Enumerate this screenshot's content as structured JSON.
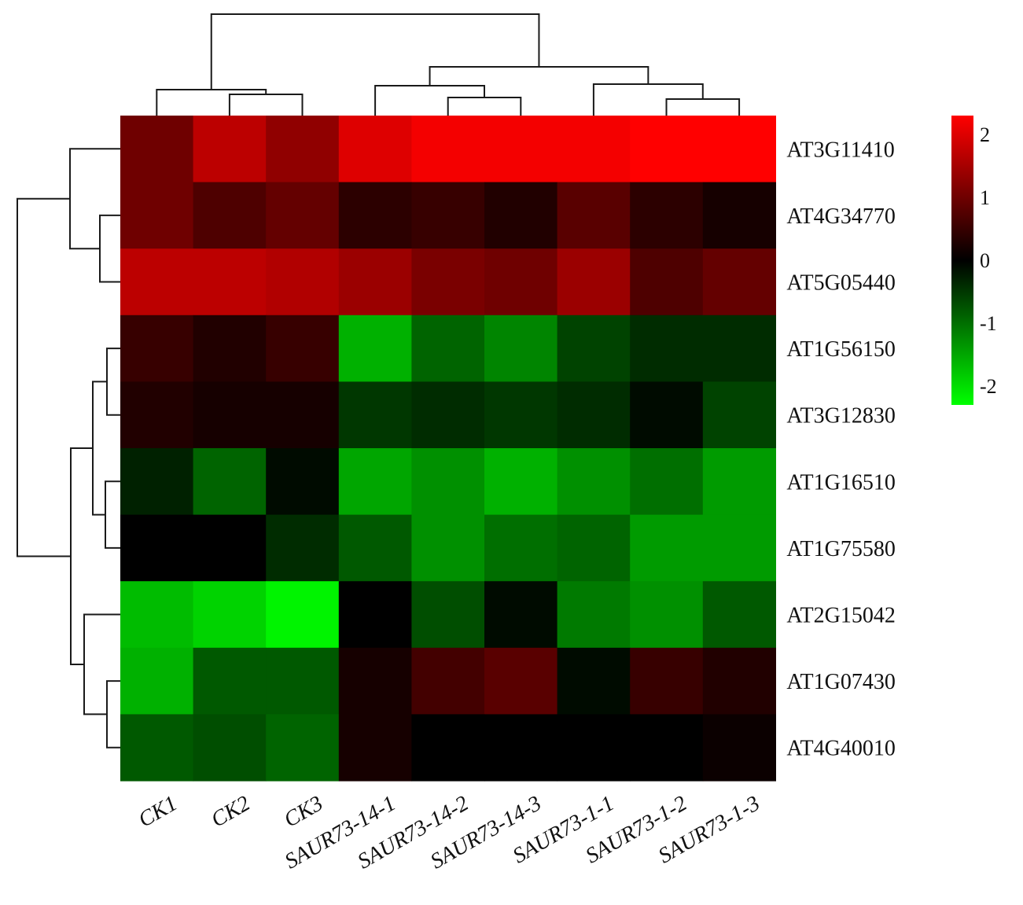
{
  "chart_data": {
    "type": "heatmap",
    "columns": [
      "CK1",
      "CK2",
      "CK3",
      "SAUR73-14-1",
      "SAUR73-14-2",
      "SAUR73-14-3",
      "SAUR73-1-1",
      "SAUR73-1-2",
      "SAUR73-1-3"
    ],
    "rows": [
      "AT3G11410",
      "AT4G34770",
      "AT5G05440",
      "AT1G56150",
      "AT3G12830",
      "AT1G16510",
      "AT1G75580",
      "AT2G15042",
      "AT1G07430",
      "AT4G40010"
    ],
    "values": [
      [
        1.0,
        1.7,
        1.3,
        2.0,
        2.2,
        2.2,
        2.2,
        2.3,
        2.3
      ],
      [
        1.0,
        0.7,
        0.9,
        0.4,
        0.5,
        0.3,
        0.8,
        0.4,
        0.2
      ],
      [
        1.7,
        1.7,
        1.6,
        1.4,
        1.1,
        1.0,
        1.4,
        0.7,
        0.9
      ],
      [
        0.5,
        0.3,
        0.5,
        -1.6,
        -0.9,
        -1.2,
        -0.6,
        -0.4,
        -0.4
      ],
      [
        0.3,
        0.2,
        0.2,
        -0.5,
        -0.4,
        -0.5,
        -0.4,
        -0.1,
        -0.6
      ],
      [
        -0.3,
        -0.9,
        -0.1,
        -1.5,
        -1.3,
        -1.6,
        -1.3,
        -1.0,
        -1.4
      ],
      [
        0.0,
        0.0,
        -0.4,
        -0.8,
        -1.3,
        -1.0,
        -0.9,
        -1.4,
        -1.4
      ],
      [
        -1.7,
        -1.9,
        -2.2,
        0.0,
        -0.7,
        -0.1,
        -1.1,
        -1.3,
        -0.8
      ],
      [
        -1.6,
        -0.8,
        -0.8,
        0.2,
        0.6,
        0.8,
        -0.1,
        0.5,
        0.3
      ],
      [
        -0.8,
        -0.7,
        -0.9,
        0.2,
        0.0,
        0.0,
        0.0,
        0.0,
        0.1
      ]
    ],
    "color_scale": {
      "min": -2.3,
      "max": 2.3,
      "low_color": "#00ff00",
      "mid_color": "#000000",
      "high_color": "#ff0000",
      "ticks": [
        "2",
        "1",
        "0",
        "-1",
        "-2"
      ],
      "tick_values": [
        2,
        1,
        0,
        -1,
        -2
      ]
    },
    "legend_placement": "right",
    "grid": false,
    "column_dendrogram": true,
    "row_dendrogram": true
  }
}
